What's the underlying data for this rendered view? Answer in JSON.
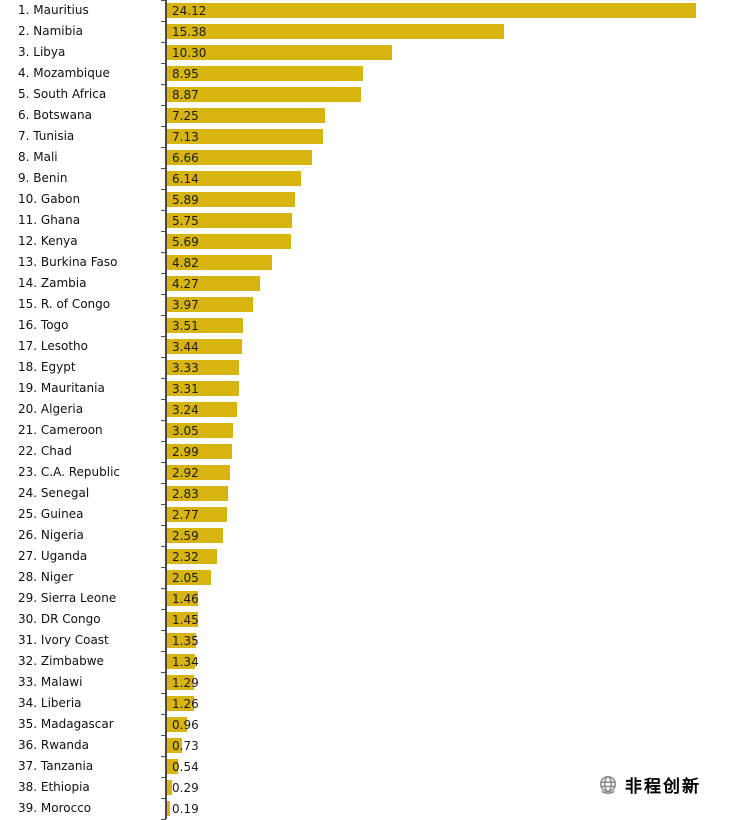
{
  "chart_data": {
    "type": "bar",
    "orientation": "horizontal",
    "title": "",
    "xlabel": "",
    "ylabel": "",
    "xlim": [
      0,
      24.12
    ],
    "grid": false,
    "legend_position": "none",
    "bar_color": "#D8B411",
    "axis_color": "#4a4a4a",
    "value_label_position": "inside-left",
    "categories": [
      "Mauritius",
      "Namibia",
      "Libya",
      "Mozambique",
      "South Africa",
      "Botswana",
      "Tunisia",
      "Mali",
      "Benin",
      "Gabon",
      "Ghana",
      "Kenya",
      "Burkina Faso",
      "Zambia",
      "R. of Congo",
      "Togo",
      "Lesotho",
      "Egypt",
      "Mauritania",
      "Algeria",
      "Cameroon",
      "Chad",
      "C.A. Republic",
      "Senegal",
      "Guinea",
      "Nigeria",
      "Uganda",
      "Niger",
      "Sierra Leone",
      "DR Congo",
      "Ivory Coast",
      "Zimbabwe",
      "Malawi",
      "Liberia",
      "Madagascar",
      "Rwanda",
      "Tanzania",
      "Ethiopia",
      "Morocco"
    ],
    "ranks": [
      1,
      2,
      3,
      4,
      5,
      6,
      7,
      8,
      9,
      10,
      11,
      12,
      13,
      14,
      15,
      16,
      17,
      18,
      19,
      20,
      21,
      22,
      23,
      24,
      25,
      26,
      27,
      28,
      29,
      30,
      31,
      32,
      33,
      34,
      35,
      36,
      37,
      38,
      39
    ],
    "values": [
      24.12,
      15.38,
      10.3,
      8.95,
      8.87,
      7.25,
      7.13,
      6.66,
      6.14,
      5.89,
      5.75,
      5.69,
      4.82,
      4.27,
      3.97,
      3.51,
      3.44,
      3.33,
      3.31,
      3.24,
      3.05,
      2.99,
      2.92,
      2.83,
      2.77,
      2.59,
      2.32,
      2.05,
      1.46,
      1.45,
      1.35,
      1.34,
      1.29,
      1.26,
      0.96,
      0.73,
      0.54,
      0.29,
      0.19
    ]
  },
  "watermark": {
    "text": "非程创新",
    "icon": "globe-icon",
    "color": "#000000"
  }
}
